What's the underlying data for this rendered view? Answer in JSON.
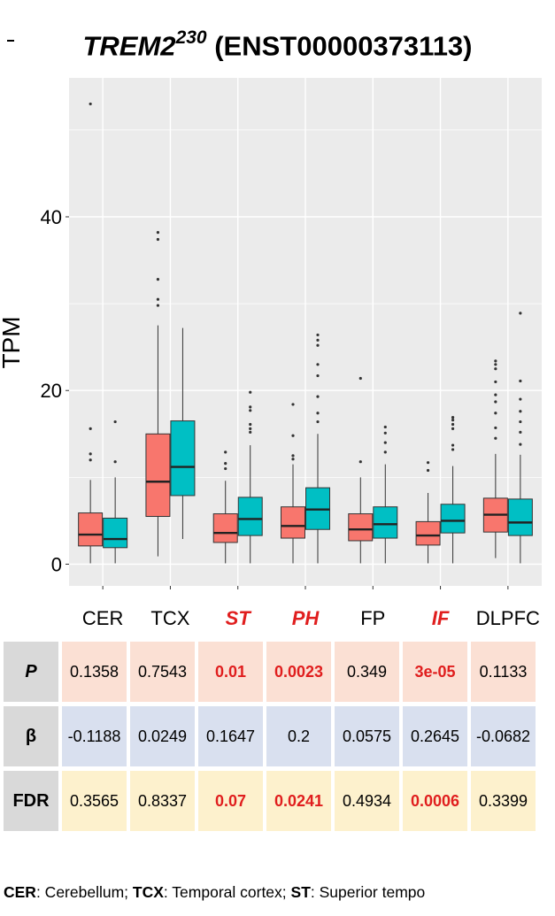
{
  "title": {
    "gene": "TREM2",
    "superscript": "230",
    "transcript": "(ENST00000373113)"
  },
  "chart_data": {
    "type": "box",
    "title": "TREM2230 (ENST00000373113)",
    "ylabel": "TPM",
    "xlabel": "",
    "ylim": [
      -2.5,
      56
    ],
    "yticks": [
      0,
      20,
      40
    ],
    "grid": true,
    "background": "#ebebeb",
    "colors": {
      "group1": "#f8766d",
      "group2": "#00bfc4",
      "highlight": "#e01e1e"
    },
    "categories": [
      {
        "label": "CER",
        "italic_red": false
      },
      {
        "label": "TCX",
        "italic_red": false
      },
      {
        "label": "ST",
        "italic_red": true
      },
      {
        "label": "PH",
        "italic_red": true
      },
      {
        "label": "FP",
        "italic_red": false
      },
      {
        "label": "IF",
        "italic_red": true
      },
      {
        "label": "DLPFC",
        "italic_red": false
      }
    ],
    "boxes": [
      {
        "category": "CER",
        "group": 1,
        "min": 0.1,
        "q1": 2.1,
        "median": 3.4,
        "q3": 5.9,
        "max": 9.7,
        "outliers": [
          12.0,
          12.7,
          15.6,
          53.0
        ]
      },
      {
        "category": "CER",
        "group": 2,
        "min": 0.1,
        "q1": 1.9,
        "median": 2.9,
        "q3": 5.3,
        "max": 10.0,
        "outliers": [
          11.8,
          16.4
        ]
      },
      {
        "category": "TCX",
        "group": 1,
        "min": 0.9,
        "q1": 5.5,
        "median": 9.5,
        "q3": 15.0,
        "max": 27.5,
        "outliers": [
          29.8,
          30.5,
          32.8,
          37.4,
          38.2
        ]
      },
      {
        "category": "TCX",
        "group": 2,
        "min": 2.9,
        "q1": 7.9,
        "median": 11.2,
        "q3": 16.5,
        "max": 27.2,
        "outliers": []
      },
      {
        "category": "ST",
        "group": 1,
        "min": 0.1,
        "q1": 2.5,
        "median": 3.6,
        "q3": 5.8,
        "max": 9.6,
        "outliers": [
          11.0,
          11.6,
          12.9
        ]
      },
      {
        "category": "ST",
        "group": 2,
        "min": 0.1,
        "q1": 3.3,
        "median": 5.2,
        "q3": 7.7,
        "max": 13.7,
        "outliers": [
          15.2,
          15.6,
          16.1,
          17.7,
          18.1,
          19.8
        ]
      },
      {
        "category": "PH",
        "group": 1,
        "min": 0.1,
        "q1": 3.0,
        "median": 4.4,
        "q3": 6.6,
        "max": 11.5,
        "outliers": [
          12.1,
          12.5,
          14.8,
          18.4
        ]
      },
      {
        "category": "PH",
        "group": 2,
        "min": 0.1,
        "q1": 4.0,
        "median": 6.3,
        "q3": 8.8,
        "max": 15.0,
        "outliers": [
          16.4,
          17.4,
          19.3,
          21.7,
          23.0,
          25.2,
          25.8,
          26.4
        ]
      },
      {
        "category": "FP",
        "group": 1,
        "min": 0.1,
        "q1": 2.7,
        "median": 4.0,
        "q3": 5.8,
        "max": 10.0,
        "outliers": [
          11.8,
          21.4
        ]
      },
      {
        "category": "FP",
        "group": 2,
        "min": 0.1,
        "q1": 3.0,
        "median": 4.6,
        "q3": 6.6,
        "max": 11.5,
        "outliers": [
          12.9,
          14.0,
          15.1,
          15.8
        ]
      },
      {
        "category": "IF",
        "group": 1,
        "min": 0.1,
        "q1": 2.2,
        "median": 3.3,
        "q3": 4.9,
        "max": 8.2,
        "outliers": [
          10.8,
          11.7
        ]
      },
      {
        "category": "IF",
        "group": 2,
        "min": 0.1,
        "q1": 3.6,
        "median": 5.0,
        "q3": 6.9,
        "max": 11.3,
        "outliers": [
          13.2,
          13.7,
          15.6,
          16.1,
          16.6,
          16.9
        ]
      },
      {
        "category": "DLPFC",
        "group": 1,
        "min": 0.7,
        "q1": 3.7,
        "median": 5.7,
        "q3": 7.6,
        "max": 12.7,
        "outliers": [
          14.5,
          15.7,
          17.4,
          18.7,
          19.5,
          21.0,
          22.5,
          23.0,
          23.4
        ]
      },
      {
        "category": "DLPFC",
        "group": 2,
        "min": 0.1,
        "q1": 3.3,
        "median": 4.8,
        "q3": 7.5,
        "max": 12.6,
        "outliers": [
          13.8,
          15.2,
          16.4,
          17.6,
          19.0,
          21.1,
          28.9
        ]
      }
    ]
  },
  "stats_table": {
    "rows": [
      {
        "key": "p",
        "label": "P",
        "italic": true,
        "cells": [
          {
            "v": "0.1358",
            "sig": false
          },
          {
            "v": "0.7543",
            "sig": false
          },
          {
            "v": "0.01",
            "sig": true
          },
          {
            "v": "0.0023",
            "sig": true
          },
          {
            "v": "0.349",
            "sig": false
          },
          {
            "v": "3e-05",
            "sig": true
          },
          {
            "v": "0.1133",
            "sig": false
          }
        ]
      },
      {
        "key": "b",
        "label": "β",
        "italic": false,
        "cells": [
          {
            "v": "-0.1188",
            "sig": false
          },
          {
            "v": "0.0249",
            "sig": false
          },
          {
            "v": "0.1647",
            "sig": false
          },
          {
            "v": "0.2",
            "sig": false
          },
          {
            "v": "0.0575",
            "sig": false
          },
          {
            "v": "0.2645",
            "sig": false
          },
          {
            "v": "-0.0682",
            "sig": false
          }
        ]
      },
      {
        "key": "f",
        "label": "FDR",
        "italic": false,
        "cells": [
          {
            "v": "0.3565",
            "sig": false
          },
          {
            "v": "0.8337",
            "sig": false
          },
          {
            "v": "0.07",
            "sig": true
          },
          {
            "v": "0.0241",
            "sig": true
          },
          {
            "v": "0.4934",
            "sig": false
          },
          {
            "v": "0.0006",
            "sig": true
          },
          {
            "v": "0.3399",
            "sig": false
          }
        ]
      }
    ]
  },
  "footnote": [
    {
      "abbr": "CER",
      "text": ": Cerebellum; "
    },
    {
      "abbr": "TCX",
      "text": ": Temporal cortex; "
    },
    {
      "abbr": "ST",
      "text": ": Superior tempo"
    }
  ]
}
